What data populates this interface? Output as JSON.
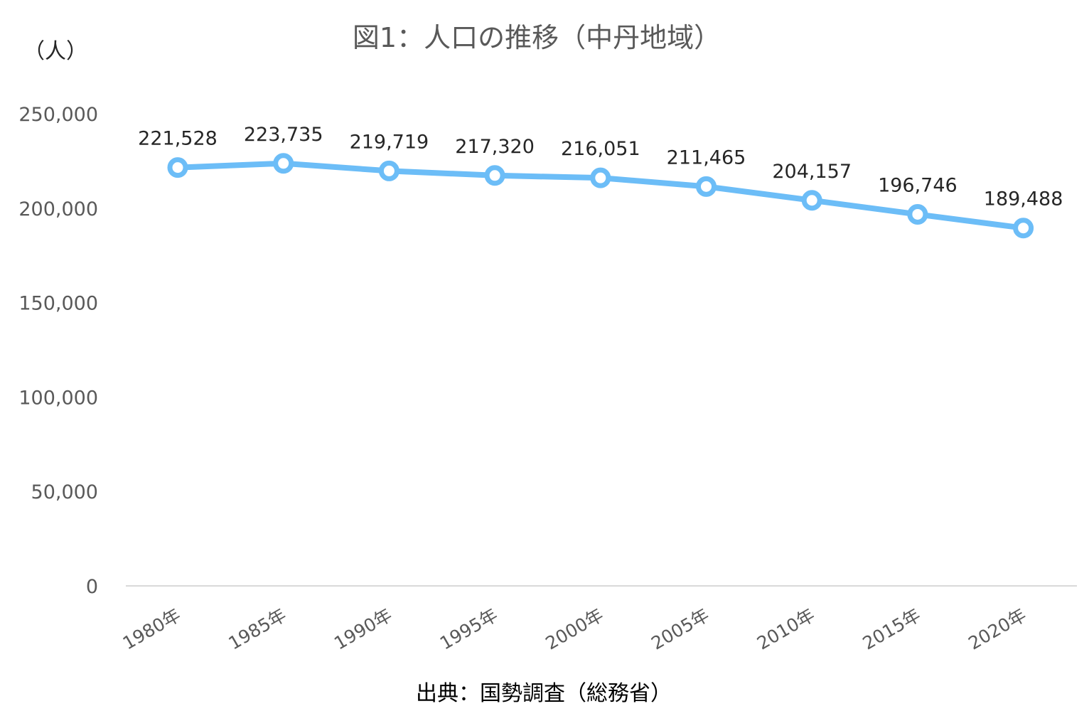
{
  "chart_data": {
    "type": "line",
    "title": "図1：人口の推移（中丹地域）",
    "ylabel": "（人）",
    "source": "出典：国勢調査（総務省）",
    "categories": [
      "1980年",
      "1985年",
      "1990年",
      "1995年",
      "2000年",
      "2005年",
      "2010年",
      "2015年",
      "2020年"
    ],
    "series": [
      {
        "values": [
          221528,
          223735,
          219719,
          217320,
          216051,
          211465,
          204157,
          196746,
          189488
        ],
        "data_labels": [
          "221,528",
          "223,735",
          "219,719",
          "217,320",
          "216,051",
          "211,465",
          "204,157",
          "196,746",
          "189,488"
        ]
      }
    ],
    "ylim": [
      0,
      250000
    ],
    "yticks": [
      0,
      50000,
      100000,
      150000,
      200000,
      250000
    ],
    "ytick_labels": [
      "0",
      "50,000",
      "100,000",
      "150,000",
      "200,000",
      "250,000"
    ],
    "grid": false,
    "legend": "none",
    "colors": {
      "line": "#6CBDF7",
      "marker_fill": "#ffffff",
      "axis": "#d9d9d9"
    }
  }
}
